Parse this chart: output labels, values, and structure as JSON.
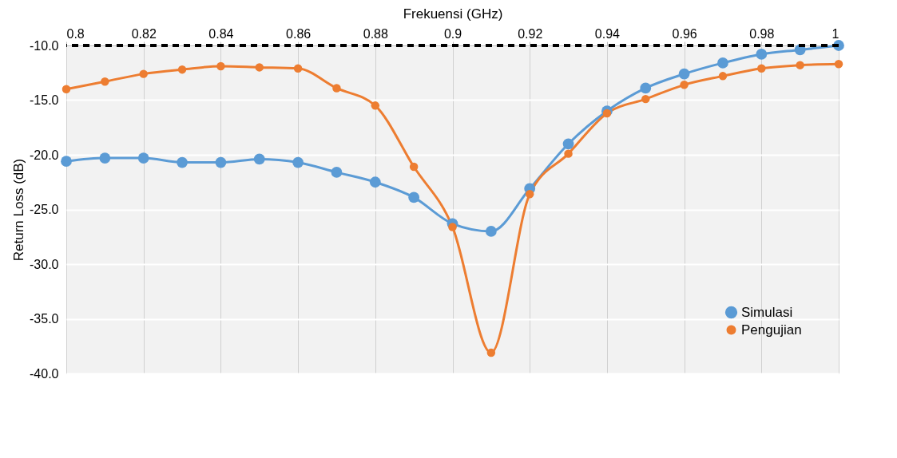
{
  "chart_data": {
    "type": "line",
    "xlabel": "Frekuensi (GHz)",
    "ylabel": "Return Loss (dB)",
    "x": [
      0.8,
      0.81,
      0.82,
      0.83,
      0.84,
      0.85,
      0.86,
      0.87,
      0.88,
      0.89,
      0.9,
      0.91,
      0.92,
      0.93,
      0.94,
      0.95,
      0.96,
      0.97,
      0.98,
      0.99,
      1.0
    ],
    "series": [
      {
        "name": "Simulasi",
        "color": "#5b9bd5",
        "values": [
          -20.6,
          -20.3,
          -20.3,
          -20.7,
          -20.7,
          -20.4,
          -20.7,
          -21.6,
          -22.5,
          -23.9,
          -26.3,
          -27.0,
          -23.1,
          -19.0,
          -16.0,
          -13.9,
          -12.6,
          -11.6,
          -10.8,
          -10.4,
          -10.0
        ]
      },
      {
        "name": "Pengujian",
        "color": "#ed7d31",
        "values": [
          -14.0,
          -13.3,
          -12.6,
          -12.2,
          -11.9,
          -12.0,
          -12.1,
          -13.9,
          -15.5,
          -21.1,
          -26.6,
          -38.1,
          -23.6,
          -19.9,
          -16.2,
          -14.9,
          -13.6,
          -12.8,
          -12.1,
          -11.8,
          -11.7
        ]
      }
    ],
    "xlim": [
      0.8,
      1.0
    ],
    "xticks": [
      0.8,
      0.82,
      0.84,
      0.86,
      0.88,
      0.9,
      0.92,
      0.94,
      0.96,
      0.98,
      1
    ],
    "ylim": [
      -40,
      -10
    ],
    "yticks": [
      {
        "value": -10,
        "label": "-10.0"
      },
      {
        "value": -15,
        "label": "-15.0"
      },
      {
        "value": -20,
        "label": "-20.0"
      },
      {
        "value": -25,
        "label": "-25.0"
      },
      {
        "value": -30,
        "label": "-30.0"
      },
      {
        "value": -35,
        "label": "-35.0"
      },
      {
        "value": -40,
        "label": "-40.0"
      }
    ],
    "ref_lines": [
      {
        "axis": "y",
        "value": -10,
        "color": "#000000",
        "line_style": "dashed"
      }
    ],
    "grid": true,
    "legend": "bottom right",
    "marker": "circle",
    "line_style": "solid"
  }
}
